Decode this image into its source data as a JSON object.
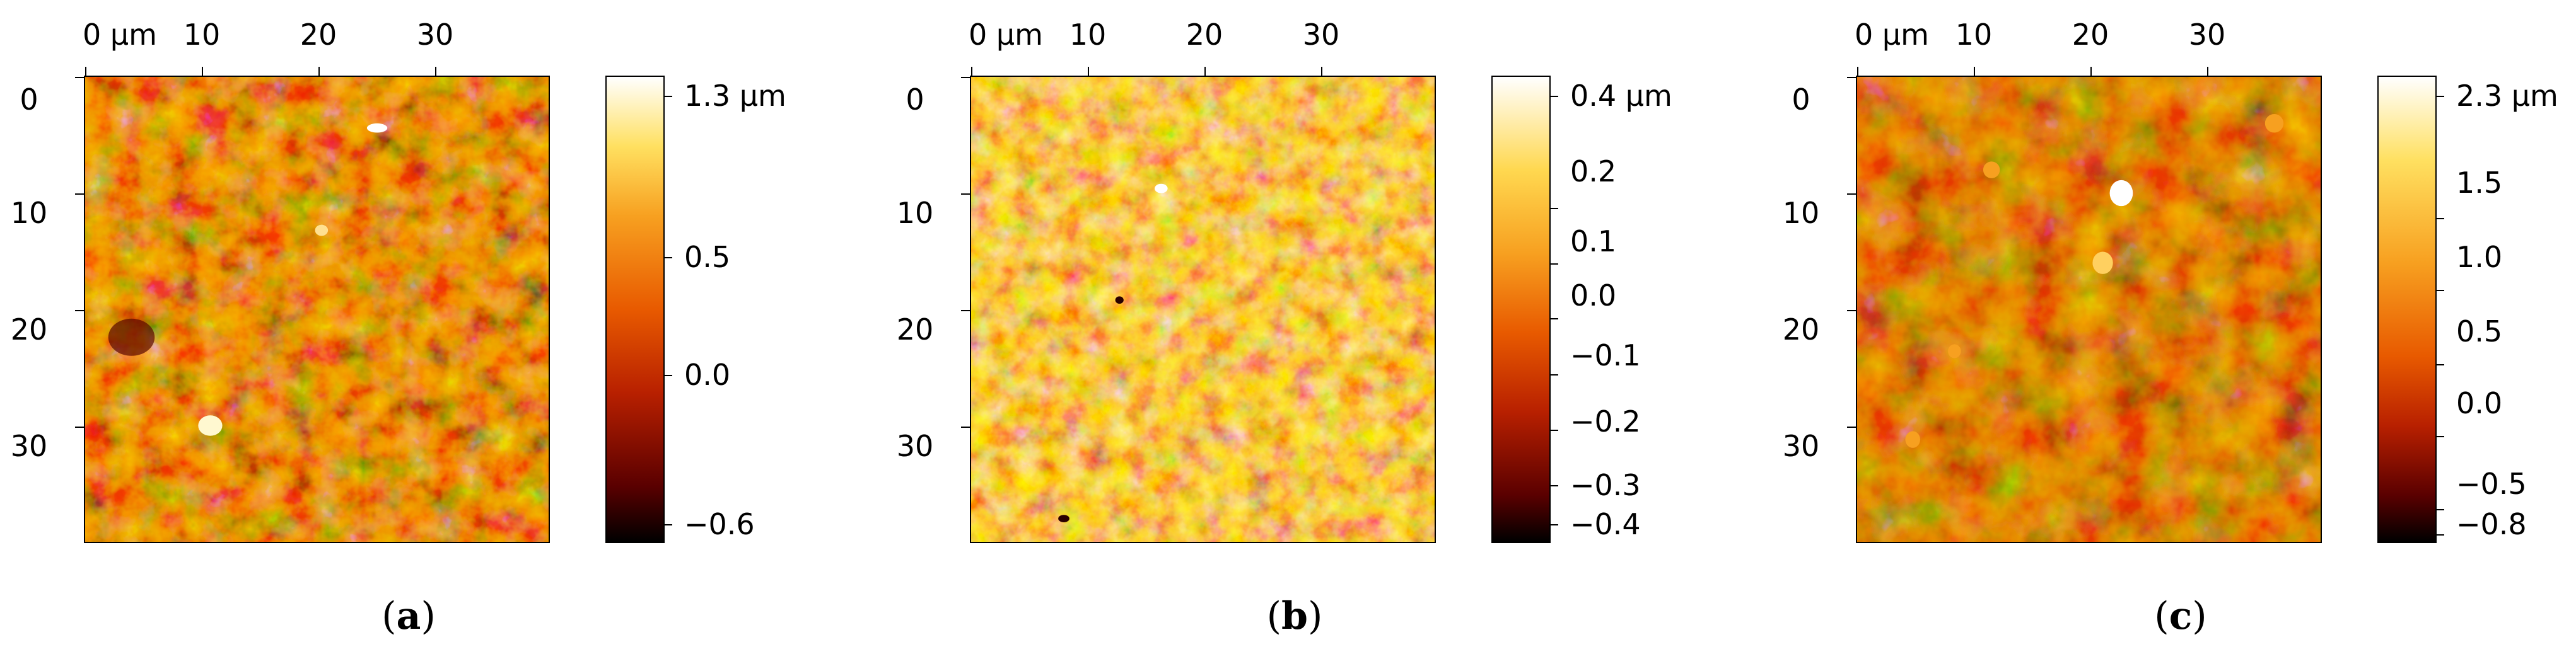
{
  "panels": [
    {
      "caption": "a",
      "x_ticks": [
        "0 µm",
        "10",
        "20",
        "30"
      ],
      "y_ticks": [
        "0",
        "10",
        "20",
        "30"
      ],
      "colorbar_labels": [
        "1.3 µm",
        "0.5",
        "0.0",
        "−0.6"
      ],
      "colorbar_values": [
        1.3,
        0.5,
        0.0,
        -0.6
      ],
      "colorbar_range": [
        -0.6,
        1.3
      ],
      "colors": {
        "low": "#1a0000",
        "mid": "#d84a00",
        "high": "#ffffff"
      }
    },
    {
      "caption": "b",
      "x_ticks": [
        "0 µm",
        "10",
        "20",
        "30"
      ],
      "y_ticks": [
        "0",
        "10",
        "20",
        "30"
      ],
      "colorbar_labels": [
        "0.4 µm",
        "0.2",
        "0.1",
        "0.0",
        "−0.1",
        "−0.2",
        "−0.3",
        "−0.4"
      ],
      "colorbar_values": [
        0.4,
        0.2,
        0.1,
        0.0,
        -0.1,
        -0.2,
        -0.3,
        -0.4
      ],
      "colorbar_range": [
        -0.42,
        0.42
      ],
      "colors": {
        "low": "#1a0000",
        "mid": "#f09a10",
        "high": "#ffffff"
      }
    },
    {
      "caption": "c",
      "x_ticks": [
        "0 µm",
        "10",
        "20",
        "30"
      ],
      "y_ticks": [
        "0",
        "10",
        "20",
        "30"
      ],
      "colorbar_labels": [
        "2.3 µm",
        "1.5",
        "1.0",
        "0.5",
        "0.0",
        "−0.5",
        "−0.8"
      ],
      "colorbar_values": [
        2.3,
        1.5,
        1.0,
        0.5,
        0.0,
        -0.5,
        -0.8
      ],
      "colorbar_range": [
        -0.8,
        2.3
      ],
      "colors": {
        "low": "#1a0000",
        "mid": "#b83800",
        "high": "#ffffff"
      }
    }
  ]
}
